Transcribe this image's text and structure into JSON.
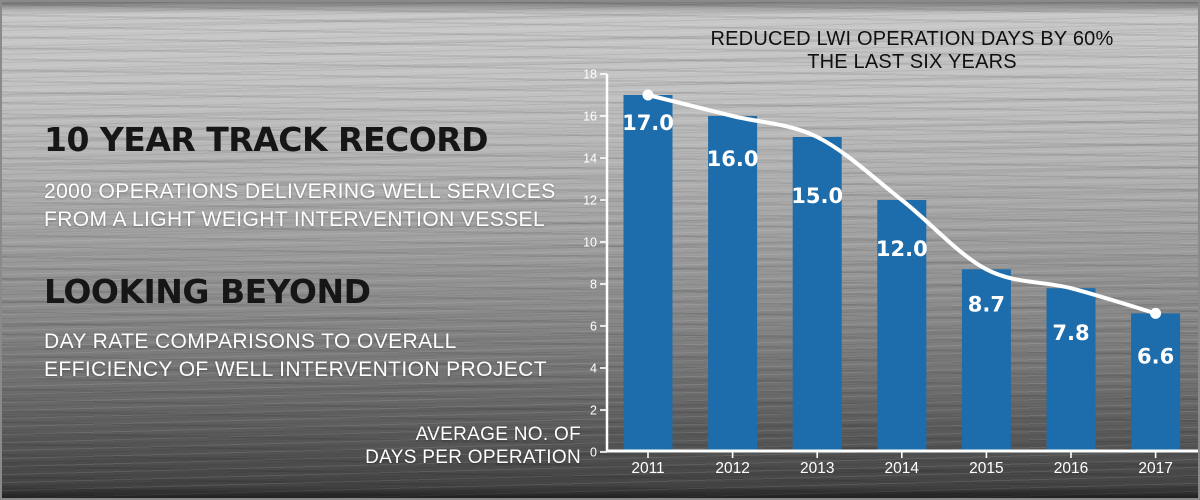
{
  "left_panel": {
    "heading1": "10 YEAR TRACK RECORD",
    "para1": [
      "2000 OPERATIONS DELIVERING WELL SERVICES",
      "FROM A LIGHT WEIGHT INTERVENTION VESSEL"
    ],
    "heading2": "LOOKING BEYOND",
    "para2": [
      "DAY RATE COMPARISONS TO OVERALL",
      "EFFICIENCY OF WELL INTERVENTION PROJECT"
    ]
  },
  "chart_data": {
    "type": "bar",
    "title": [
      "REDUCED LWI OPERATION DAYS BY 60%",
      "THE LAST SIX YEARS"
    ],
    "categories": [
      "2011",
      "2012",
      "2013",
      "2014",
      "2015",
      "2016",
      "2017"
    ],
    "values": [
      17.0,
      16.0,
      15.0,
      12.0,
      8.7,
      7.8,
      6.6
    ],
    "value_label_decimals": 1,
    "axis_caption": [
      "AVERAGE NO. OF",
      "DAYS PER OPERATION"
    ],
    "ylim": [
      0,
      18
    ],
    "ytick_step": 2,
    "grid": false,
    "legend": "none",
    "bar_color": "#1d6cab",
    "trend_line_color": "#ffffff",
    "axis_color": "#ffffff",
    "trend_line": "smooth white curve through bar tops with round dots at first and last points"
  },
  "colors": {
    "heading_text": "#161616",
    "body_text": "#ffffff",
    "chart_title_text": "#101010"
  }
}
